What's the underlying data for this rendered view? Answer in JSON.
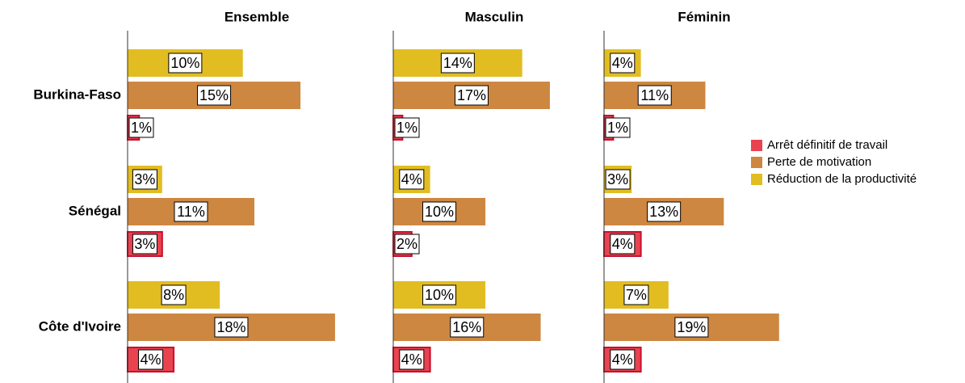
{
  "chart_data": {
    "type": "bar",
    "orientation": "horizontal",
    "categories": [
      "Burkina-Faso",
      "Sénégal",
      "Côte d'Ivoire"
    ],
    "series": [
      {
        "name": "Arrêt définitif de travail",
        "color": "#e8434f"
      },
      {
        "name": "Perte de motivation",
        "color": "#cd8741"
      },
      {
        "name": "Réduction de la productivité",
        "color": "#e2bd22"
      }
    ],
    "legend": "right",
    "panels": [
      {
        "title": "Ensemble",
        "xlim": [
          0,
          22
        ],
        "series": [
          {
            "values": [
              1,
              3,
              4
            ],
            "value_labels": [
              "1%",
              "3%",
              "4%"
            ]
          },
          {
            "values": [
              15,
              11,
              18
            ],
            "value_labels": [
              "15%",
              "11%",
              "18%"
            ]
          },
          {
            "values": [
              10,
              3,
              8
            ],
            "value_labels": [
              "10%",
              "3%",
              "8%"
            ]
          }
        ]
      },
      {
        "title": "Masculin",
        "xlim": [
          0,
          22
        ],
        "series": [
          {
            "values": [
              1,
              2,
              4
            ],
            "value_labels": [
              "1%",
              "2%",
              "4%"
            ]
          },
          {
            "values": [
              17,
              10,
              16
            ],
            "value_labels": [
              "17%",
              "10%",
              "16%"
            ]
          },
          {
            "values": [
              14,
              4,
              10
            ],
            "value_labels": [
              "14%",
              "4%",
              "10%"
            ]
          }
        ]
      },
      {
        "title": "Féminin",
        "xlim": [
          0,
          22
        ],
        "series": [
          {
            "values": [
              1,
              4,
              4
            ],
            "value_labels": [
              "1%",
              "4%",
              "4%"
            ]
          },
          {
            "values": [
              11,
              13,
              19
            ],
            "value_labels": [
              "11%",
              "13%",
              "19%"
            ]
          },
          {
            "values": [
              4,
              3,
              7
            ],
            "value_labels": [
              "4%",
              "3%",
              "7%"
            ]
          }
        ]
      }
    ]
  }
}
